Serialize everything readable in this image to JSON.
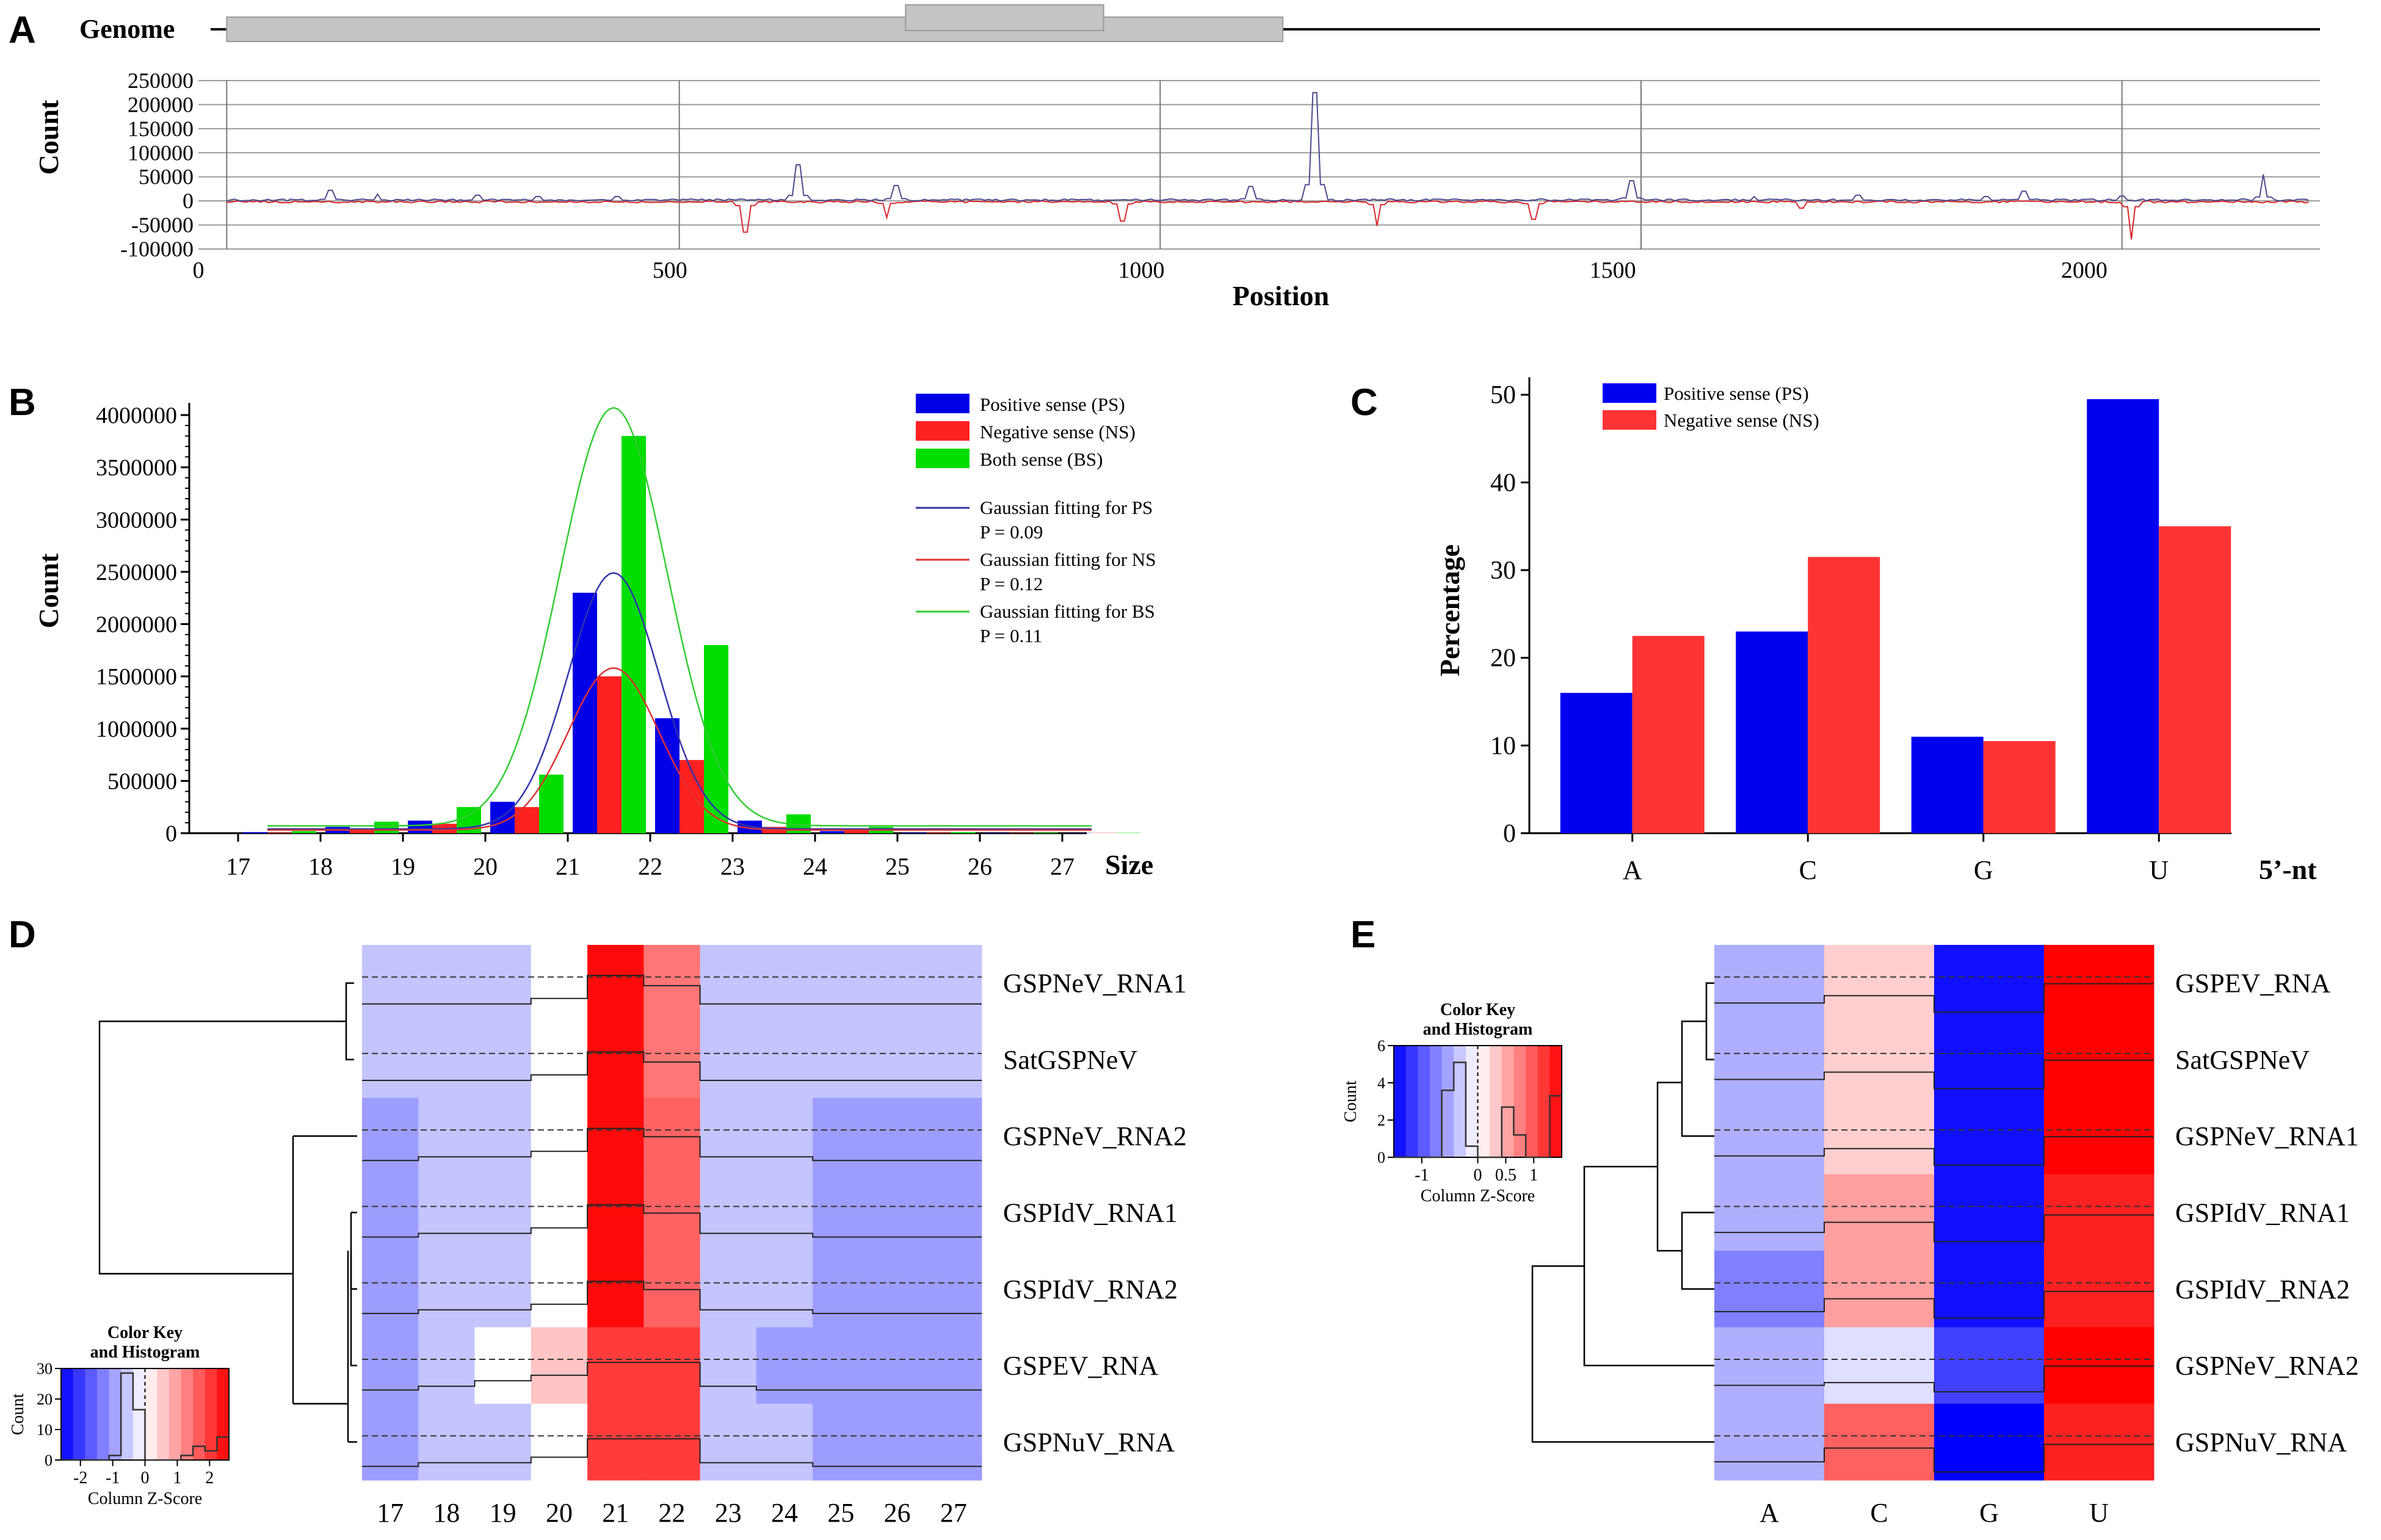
{
  "figure": {
    "panel_labels": [
      "A",
      "B",
      "C",
      "D",
      "E"
    ]
  },
  "chart_data": [
    {
      "id": "A",
      "type": "line",
      "title": "",
      "genome_label": "Genome",
      "xlabel": "Position",
      "ylabel": "Count",
      "xlim": [
        0,
        2250
      ],
      "ylim": [
        -100000,
        250000
      ],
      "x_ticks": [
        0,
        500,
        1000,
        1500,
        2000
      ],
      "y_ticks": [
        250000,
        200000,
        150000,
        100000,
        50000,
        0,
        -50000,
        -100000
      ],
      "y_tick_labels": [
        "250000",
        "200000",
        "150000",
        "100000",
        "50000",
        "0",
        "-50000",
        "-100000"
      ],
      "colors": {
        "positive": "#4a4a8c",
        "negative": "#d9262c",
        "bar": "#c4c4c4"
      },
      "genome_segments": [
        [
          30,
          1150
        ],
        [
          750,
          960
        ]
      ],
      "vertical_lines": [
        30,
        510,
        1020,
        1530,
        2040
      ],
      "series": [
        {
          "name": "positive",
          "peaks": [
            [
              140,
              22000
            ],
            [
              190,
              14000
            ],
            [
              295,
              12000
            ],
            [
              360,
              9000
            ],
            [
              445,
              9000
            ],
            [
              635,
              75000
            ],
            [
              740,
              32000
            ],
            [
              1115,
              30000
            ],
            [
              1185,
              225000
            ],
            [
              1520,
              42000
            ],
            [
              1650,
              9000
            ],
            [
              1760,
              12000
            ],
            [
              1895,
              9000
            ],
            [
              1935,
              20000
            ],
            [
              2040,
              10000
            ],
            [
              2190,
              55000
            ]
          ]
        },
        {
          "name": "negative",
          "peaks": [
            [
              580,
              -65000
            ],
            [
              730,
              -35000
            ],
            [
              980,
              -42000
            ],
            [
              1250,
              -52000
            ],
            [
              1415,
              -38000
            ],
            [
              1700,
              -15000
            ],
            [
              2050,
              -80000
            ]
          ]
        }
      ]
    },
    {
      "id": "B",
      "type": "bar",
      "xlabel": "Size",
      "ylabel": "Count",
      "categories": [
        "17",
        "18",
        "19",
        "20",
        "21",
        "22",
        "23",
        "24",
        "25",
        "26",
        "27"
      ],
      "ylim": [
        0,
        4000000
      ],
      "y_ticks": [
        0,
        500000,
        1000000,
        1500000,
        2000000,
        2500000,
        3000000,
        3500000,
        4000000
      ],
      "y_tick_labels": [
        "0",
        "500000",
        "1000000",
        "1500000",
        "2000000",
        "2500000",
        "3000000",
        "3500000",
        "4000000"
      ],
      "series": [
        {
          "name": "Positive sense (PS)",
          "color": "#0000e6",
          "values": [
            10000,
            60000,
            120000,
            300000,
            2300000,
            1100000,
            120000,
            20000,
            5000,
            3000,
            2000
          ]
        },
        {
          "name": "Negative sense (NS)",
          "color": "#ff2020",
          "values": [
            5000,
            40000,
            90000,
            250000,
            1500000,
            700000,
            60000,
            30000,
            5000,
            3000,
            2000
          ]
        },
        {
          "name": "Both sense (BS)",
          "color": "#00dd00",
          "values": [
            20000,
            110000,
            250000,
            560000,
            3800000,
            1800000,
            180000,
            60000,
            10000,
            5000,
            3000
          ]
        }
      ],
      "fits": [
        {
          "name": "Gaussian fitting for PS",
          "p_label": "P =  0.09",
          "color": "#3333aa",
          "amplitude": 2450000,
          "mu": 21.2,
          "sigma": 0.55,
          "baseline": 40000
        },
        {
          "name": "Gaussian fitting for NS",
          "p_label": "P =  0.12",
          "color": "#dd3333",
          "amplitude": 1550000,
          "mu": 21.2,
          "sigma": 0.55,
          "baseline": 30000
        },
        {
          "name": "Gaussian fitting for BS",
          "p_label": "P =  0.11",
          "color": "#33cc33",
          "amplitude": 4000000,
          "mu": 21.2,
          "sigma": 0.65,
          "baseline": 70000
        }
      ]
    },
    {
      "id": "C",
      "type": "bar",
      "xlabel": "5’-nt",
      "ylabel": "Percentage",
      "categories": [
        "A",
        "C",
        "G",
        "U"
      ],
      "ylim": [
        0,
        52
      ],
      "y_ticks": [
        0,
        10,
        20,
        30,
        40,
        50
      ],
      "y_tick_labels": [
        "0",
        "10",
        "20",
        "30",
        "40",
        "50"
      ],
      "series": [
        {
          "name": "Positive sense (PS)",
          "color": "#0000f0",
          "values": [
            16,
            23,
            11,
            49.5
          ]
        },
        {
          "name": "Negative sense (NS)",
          "color": "#ff3333",
          "values": [
            22.5,
            31.5,
            10.5,
            35
          ]
        }
      ]
    },
    {
      "id": "D",
      "type": "heatmap",
      "columns": [
        "17",
        "18",
        "19",
        "20",
        "21",
        "22",
        "23",
        "24",
        "25",
        "26",
        "27"
      ],
      "rows": [
        "GSPNeV_RNA1",
        "SatGSPNeV",
        "GSPNeV_RNA2",
        "GSPIdV_RNA1",
        "GSPIdV_RNA2",
        "GSPEV_RNA",
        "GSPNuV_RNA"
      ],
      "values": [
        [
          -0.6,
          -0.6,
          -0.6,
          0.0,
          2.5,
          1.4,
          -0.6,
          -0.6,
          -0.6,
          -0.6,
          -0.6
        ],
        [
          -0.6,
          -0.6,
          -0.6,
          0.0,
          2.5,
          1.4,
          -0.6,
          -0.6,
          -0.6,
          -0.6,
          -0.6
        ],
        [
          -1.0,
          -0.6,
          -0.6,
          0.0,
          2.5,
          1.6,
          -0.6,
          -0.6,
          -1.0,
          -1.0,
          -1.0
        ],
        [
          -1.0,
          -0.6,
          -0.6,
          0.0,
          2.5,
          1.6,
          -0.6,
          -0.6,
          -1.0,
          -1.0,
          -1.0
        ],
        [
          -1.0,
          -0.6,
          -0.6,
          0.0,
          2.5,
          1.6,
          -0.6,
          -0.6,
          -1.0,
          -1.0,
          -1.0
        ],
        [
          -1.0,
          -0.6,
          0.0,
          0.6,
          2.0,
          2.0,
          -0.6,
          -1.0,
          -1.0,
          -1.0,
          -1.0
        ],
        [
          -1.0,
          -0.6,
          -0.6,
          0.0,
          2.0,
          2.0,
          -0.6,
          -0.6,
          -1.0,
          -1.0,
          -1.0
        ]
      ],
      "color_key": {
        "title": "Color Key and Histogram",
        "xlabel": "Column Z-Score",
        "ylabel": "Count",
        "ticks": [
          "-2",
          "-1",
          "0",
          "1",
          "2"
        ],
        "y_ticks": [
          "0",
          "10",
          "20",
          "30"
        ],
        "range": [
          -2.6,
          2.6
        ]
      }
    },
    {
      "id": "E",
      "type": "heatmap",
      "columns": [
        "A",
        "C",
        "G",
        "U"
      ],
      "rows": [
        "GSPEV_RNA",
        "SatGSPNeV",
        "GSPNeV_RNA1",
        "GSPIdV_RNA1",
        "GSPIdV_RNA2",
        "GSPNeV_RNA2",
        "GSPNuV_RNA"
      ],
      "values": [
        [
          -0.5,
          0.3,
          -1.5,
          1.6
        ],
        [
          -0.5,
          0.3,
          -1.5,
          1.6
        ],
        [
          -0.5,
          0.3,
          -1.5,
          1.6
        ],
        [
          -0.5,
          0.6,
          -1.5,
          1.4
        ],
        [
          -0.8,
          0.6,
          -1.5,
          1.4
        ],
        [
          -0.5,
          -0.2,
          -1.2,
          1.6
        ],
        [
          -0.5,
          1.0,
          -1.6,
          1.4
        ]
      ],
      "color_key": {
        "title": "Color Key and Histogram",
        "xlabel": "Column Z-Score",
        "ylabel": "Count",
        "ticks": [
          "-1",
          "0",
          "0.5",
          "1"
        ],
        "y_ticks": [
          "0",
          "2",
          "4",
          "6"
        ],
        "range": [
          -1.5,
          1.5
        ]
      }
    }
  ]
}
